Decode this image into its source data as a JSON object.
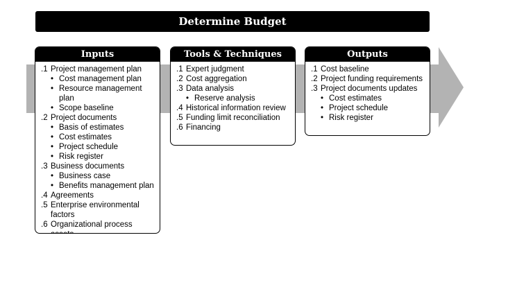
{
  "title": "Determine Budget",
  "colors": {
    "header": "#000000",
    "arrow": "#b3b3b3",
    "text": "#000000"
  },
  "inputs": {
    "heading": "Inputs",
    "items": [
      {
        "num": ".1",
        "label": "Project management plan",
        "subs": [
          "Cost management plan",
          "Resource management plan",
          "Scope baseline"
        ]
      },
      {
        "num": ".2",
        "label": "Project documents",
        "subs": [
          "Basis of estimates",
          "Cost estimates",
          "Project schedule",
          "Risk register"
        ]
      },
      {
        "num": ".3",
        "label": "Business documents",
        "subs": [
          "Business case",
          "Benefits management plan"
        ]
      },
      {
        "num": ".4",
        "label": "Agreements",
        "subs": []
      },
      {
        "num": ".5",
        "label": "Enterprise environmental factors",
        "subs": []
      },
      {
        "num": ".6",
        "label": "Organizational process assets",
        "subs": []
      }
    ]
  },
  "tools": {
    "heading": "Tools & Techniques",
    "items": [
      {
        "num": ".1",
        "label": "Expert judgment",
        "subs": []
      },
      {
        "num": ".2",
        "label": "Cost aggregation",
        "subs": []
      },
      {
        "num": ".3",
        "label": "Data analysis",
        "subs": [
          "Reserve analysis"
        ]
      },
      {
        "num": ".4",
        "label": "Historical information review",
        "subs": []
      },
      {
        "num": ".5",
        "label": "Funding limit reconciliation",
        "subs": []
      },
      {
        "num": ".6",
        "label": "Financing",
        "subs": []
      }
    ]
  },
  "outputs": {
    "heading": "Outputs",
    "items": [
      {
        "num": ".1",
        "label": "Cost baseline",
        "subs": []
      },
      {
        "num": ".2",
        "label": "Project funding requirements",
        "subs": []
      },
      {
        "num": ".3",
        "label": "Project documents updates",
        "subs": [
          "Cost estimates",
          "Project schedule",
          "Risk register"
        ]
      }
    ]
  }
}
